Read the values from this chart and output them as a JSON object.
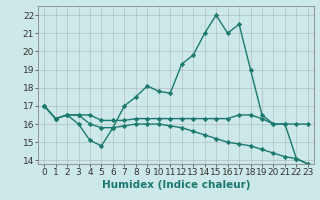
{
  "xlabel": "Humidex (Indice chaleur)",
  "background_color": "#cce8e8",
  "grid_color": "#aaaaaa",
  "line_color": "#1a7a6e",
  "series": [
    [
      17,
      16.3,
      16.5,
      16.0,
      15.1,
      14.8,
      15.8,
      17.0,
      17.5,
      18.1,
      17.8,
      17.7,
      19.3,
      19.8,
      21.0,
      22.0,
      21.0,
      21.5,
      19.0,
      16.5,
      16.0,
      16.0,
      14.1,
      13.8
    ],
    [
      17,
      16.3,
      16.5,
      16.5,
      16.5,
      16.2,
      16.2,
      16.2,
      16.3,
      16.3,
      16.3,
      16.3,
      16.3,
      16.3,
      16.3,
      16.3,
      16.3,
      16.5,
      16.5,
      16.3,
      16.0,
      16.0,
      16.0,
      16.0
    ],
    [
      17,
      16.3,
      16.5,
      16.5,
      16.0,
      15.8,
      15.8,
      15.9,
      16.0,
      16.0,
      16.0,
      15.9,
      15.8,
      15.6,
      15.4,
      15.2,
      15.0,
      14.9,
      14.8,
      14.6,
      14.4,
      14.2,
      14.1,
      13.8
    ]
  ],
  "x_values": [
    0,
    1,
    2,
    3,
    4,
    5,
    6,
    7,
    8,
    9,
    10,
    11,
    12,
    13,
    14,
    15,
    16,
    17,
    18,
    19,
    20,
    21,
    22,
    23
  ],
  "ylim": [
    13.8,
    22.5
  ],
  "xlim": [
    -0.5,
    23.5
  ],
  "yticks": [
    14,
    15,
    16,
    17,
    18,
    19,
    20,
    21,
    22
  ],
  "xticks": [
    0,
    1,
    2,
    3,
    4,
    5,
    6,
    7,
    8,
    9,
    10,
    11,
    12,
    13,
    14,
    15,
    16,
    17,
    18,
    19,
    20,
    21,
    22,
    23
  ],
  "marker": "D",
  "marker_size": 2.2,
  "linewidth": 1.0,
  "fontsize_ticks": 6.5,
  "fontsize_xlabel": 7.5
}
